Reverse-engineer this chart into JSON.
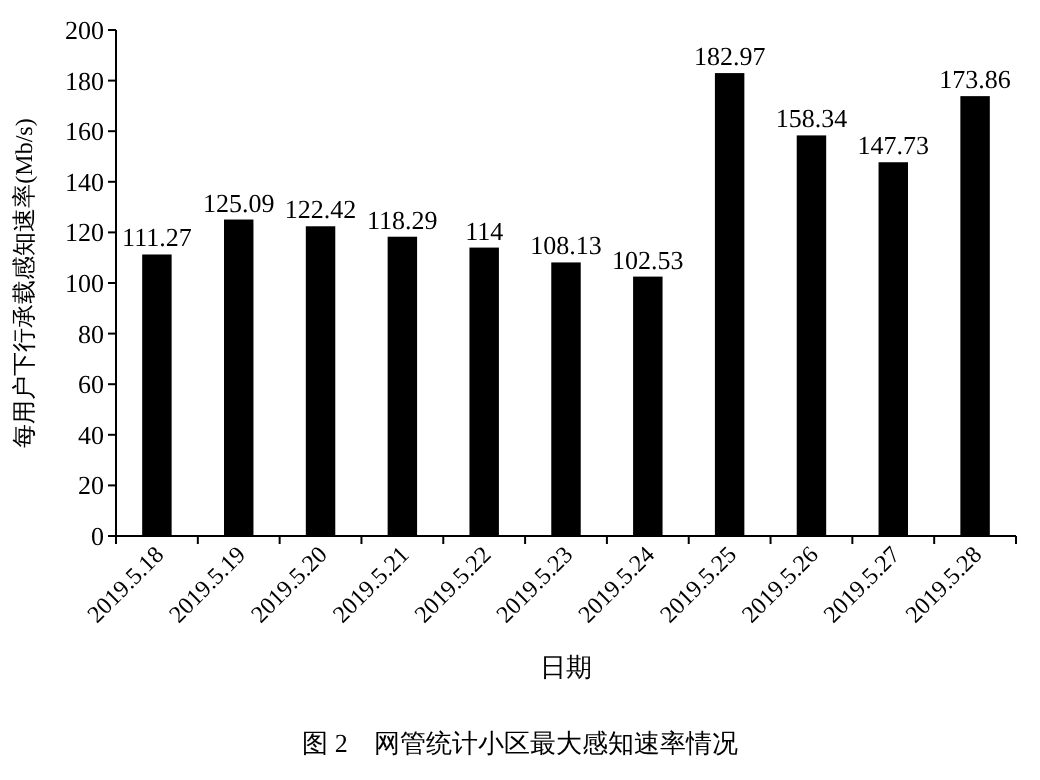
{
  "chart_data": {
    "type": "bar",
    "title": "图 2　网管统计小区最大感知速率情况",
    "xlabel": "日期",
    "ylabel": "每用户下行承载感知速率(Mb/s)",
    "categories": [
      "2019.5.18",
      "2019.5.19",
      "2019.5.20",
      "2019.5.21",
      "2019.5.22",
      "2019.5.23",
      "2019.5.24",
      "2019.5.25",
      "2019.5.26",
      "2019.5.27",
      "2019.5.28"
    ],
    "values": [
      111.27,
      125.09,
      122.42,
      118.29,
      114,
      108.13,
      102.53,
      182.97,
      158.34,
      147.73,
      173.86
    ],
    "color": "#000000",
    "ylim": [
      0,
      200
    ],
    "yticks": [
      0,
      20,
      40,
      60,
      80,
      100,
      120,
      140,
      160,
      180,
      200
    ],
    "data_labels": true
  }
}
